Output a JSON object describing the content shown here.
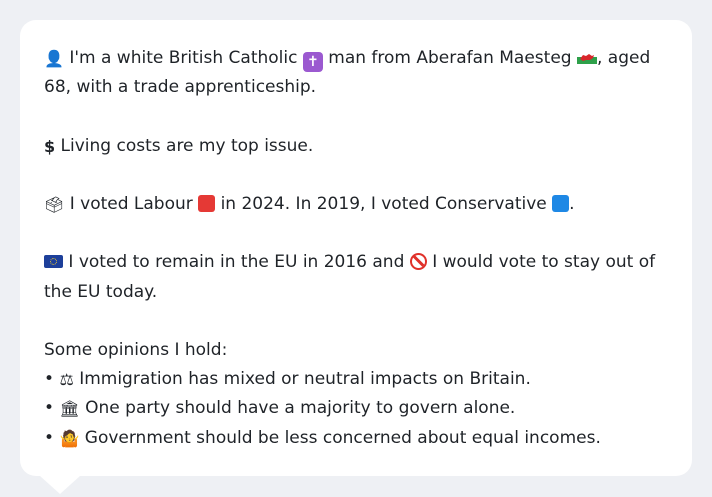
{
  "profile": {
    "identity_icon": "👤",
    "identity_pre": "I'm a white British Catholic",
    "religion_icon": "latin-cross-icon",
    "identity_mid": "man from Aberafan Maesteg",
    "region_icon": "wales-flag-icon",
    "identity_post": ", aged 68, with a trade apprenticeship.",
    "issue_icon": "$",
    "issue_text": "Living costs are my top issue.",
    "vote_icon": "🗳",
    "vote_pre": "I voted Labour",
    "labour_color": "#e53935",
    "vote_mid": "in 2024. In 2019, I voted Conservative",
    "conservative_color": "#1e88e5",
    "vote_post": ".",
    "eu_icon": "eu-flag-icon",
    "eu_pre": "I voted to remain in the EU in 2016 and",
    "eu_current_icon": "no-entry-icon",
    "eu_post": "I would vote to stay out of the EU today.",
    "opinions_heading": "Some opinions I hold:",
    "opinions": [
      {
        "icon": "⚖",
        "icon_name": "balance-scale-icon",
        "text": "Immigration has mixed or neutral impacts on Britain."
      },
      {
        "icon": "🏛",
        "icon_name": "classical-building-icon",
        "text": "One party should have a majority to govern alone."
      },
      {
        "icon": "🤷",
        "icon_name": "person-shrugging-icon",
        "text": "Government should be less concerned about equal incomes."
      }
    ],
    "bullet": "•"
  }
}
